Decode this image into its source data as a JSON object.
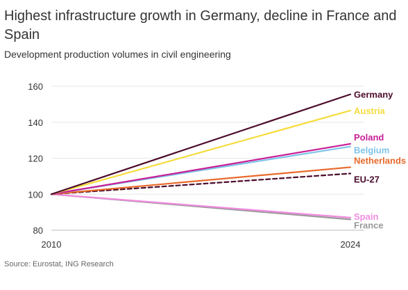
{
  "title": "Highest infrastructure growth in Germany, decline in France and Spain",
  "subtitle": "Development production volumes in civil engineering",
  "source": "Source: Eurostat, ING Research",
  "chart_data": {
    "type": "line",
    "title": "Highest infrastructure growth in Germany, decline in France and Spain",
    "subtitle": "Development production volumes in civil engineering",
    "x": [
      2010,
      2024
    ],
    "xticks": [
      "2010",
      "2024"
    ],
    "yticks": [
      80,
      100,
      120,
      140,
      160
    ],
    "ylim": [
      80,
      160
    ],
    "grid": "horizontal",
    "legend": "direct labels at line ends (right)",
    "series": [
      {
        "name": "Germany",
        "values": [
          100,
          155.5
        ],
        "color": "#4a0a2a",
        "dashed": false
      },
      {
        "name": "Austria",
        "values": [
          100,
          146.5
        ],
        "color": "#f5dc3c",
        "dashed": false
      },
      {
        "name": "Poland",
        "values": [
          100,
          128
        ],
        "color": "#c81e96",
        "dashed": false
      },
      {
        "name": "Belgium",
        "values": [
          100,
          126.5
        ],
        "color": "#7fc4e8",
        "dashed": false
      },
      {
        "name": "Netherlands",
        "values": [
          100,
          115
        ],
        "color": "#e8692a",
        "dashed": false
      },
      {
        "name": "EU-27",
        "values": [
          100,
          111.5
        ],
        "color": "#4a0a2a",
        "dashed": true
      },
      {
        "name": "Spain",
        "values": [
          100,
          87
        ],
        "color": "#f08ce0",
        "dashed": false
      },
      {
        "name": "France",
        "values": [
          100,
          86
        ],
        "color": "#999999",
        "dashed": false
      }
    ]
  }
}
